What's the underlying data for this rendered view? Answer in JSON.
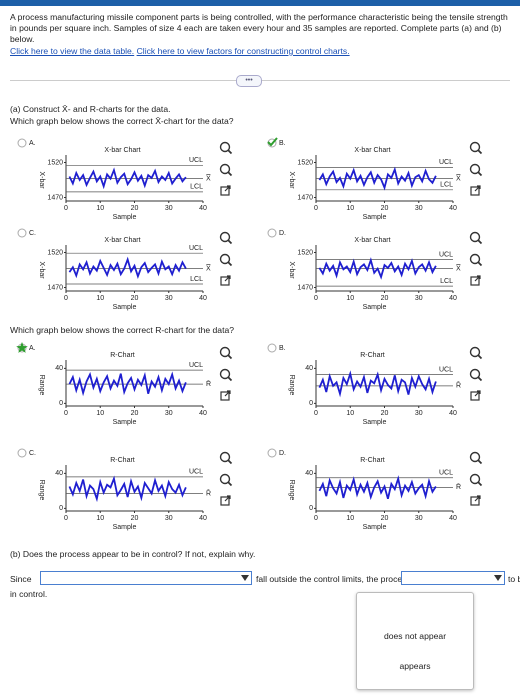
{
  "header": {
    "intro": "A process manufacturing missile component parts is being controlled, with the performance characteristic being the tensile strength in pounds per square inch. Samples of size 4 each are taken every hour and 35 samples are reported. Complete parts (a) and (b) below.",
    "links": [
      "Click here to view the data table.",
      "Click here to view factors for constructing control charts."
    ]
  },
  "part_a": {
    "heading": "(a) Construct X̄- and R-charts for the data.",
    "xbar_question": "Which graph below shows the correct X̄-chart for the data?",
    "xbar_options": [
      {
        "letter": "A.",
        "correct": false,
        "title": "X-bar Chart",
        "ylabel": "X-bar",
        "xlabel": "Sample",
        "xlim": [
          0,
          40
        ],
        "xticks": [
          0,
          10,
          20,
          30,
          40
        ],
        "ylim": [
          1465,
          1525
        ],
        "yticks": [
          1470,
          1520
        ],
        "ucl_label": "UCL",
        "center_label": "X̿",
        "lcl_label": "LCL",
        "ucl": 1516,
        "center": 1497,
        "lcl": 1478,
        "values": [
          1500,
          1490,
          1505,
          1495,
          1502,
          1488,
          1498,
          1507,
          1493,
          1500,
          1486,
          1503,
          1497,
          1509,
          1491,
          1499,
          1504,
          1489,
          1496,
          1506,
          1494,
          1501,
          1487,
          1502,
          1498,
          1508,
          1492,
          1500,
          1495,
          1505,
          1490,
          1497,
          1503,
          1493,
          1499
        ]
      },
      {
        "letter": "B.",
        "correct": true,
        "title": "X-bar Chart",
        "ylabel": "X-bar",
        "xlabel": "Sample",
        "xlim": [
          0,
          40
        ],
        "xticks": [
          0,
          10,
          20,
          30,
          40
        ],
        "ylim": [
          1465,
          1525
        ],
        "yticks": [
          1470,
          1520
        ],
        "ucl_label": "UCL",
        "center_label": "X̿",
        "lcl_label": "LCL",
        "ucl": 1513,
        "center": 1497,
        "lcl": 1481,
        "values": [
          1495,
          1503,
          1489,
          1500,
          1507,
          1492,
          1498,
          1486,
          1504,
          1497,
          1509,
          1493,
          1501,
          1488,
          1499,
          1506,
          1491,
          1502,
          1496,
          1484,
          1503,
          1498,
          1510,
          1490,
          1500,
          1494,
          1505,
          1487,
          1499,
          1502,
          1493,
          1508,
          1496,
          1491,
          1501
        ]
      },
      {
        "letter": "C.",
        "correct": false,
        "title": "X-bar Chart",
        "ylabel": "X-bar",
        "xlabel": "Sample",
        "xlim": [
          0,
          40
        ],
        "xticks": [
          0,
          10,
          20,
          30,
          40
        ],
        "ylim": [
          1465,
          1525
        ],
        "yticks": [
          1470,
          1520
        ],
        "ucl_label": "UCL",
        "center_label": "X̿",
        "lcl_label": "LCL",
        "ucl": 1519,
        "center": 1497,
        "lcl": 1475,
        "values": [
          1492,
          1499,
          1487,
          1503,
          1496,
          1506,
          1490,
          1500,
          1494,
          1508,
          1498,
          1488,
          1502,
          1495,
          1504,
          1489,
          1497,
          1510,
          1493,
          1501,
          1486,
          1499,
          1505,
          1492,
          1498,
          1503,
          1490,
          1507,
          1496,
          1500,
          1489,
          1502,
          1494,
          1506,
          1497
        ]
      },
      {
        "letter": "D.",
        "correct": false,
        "title": "X-bar Chart",
        "ylabel": "X-bar",
        "xlabel": "Sample",
        "xlim": [
          0,
          40
        ],
        "xticks": [
          0,
          10,
          20,
          30,
          40
        ],
        "ylim": [
          1465,
          1525
        ],
        "yticks": [
          1470,
          1520
        ],
        "ucl_label": "UCL",
        "center_label": "X̿",
        "lcl_label": "LCL",
        "ucl": 1510,
        "center": 1497,
        "lcl": 1472,
        "values": [
          1498,
          1490,
          1504,
          1494,
          1501,
          1487,
          1506,
          1496,
          1500,
          1492,
          1507,
          1489,
          1499,
          1503,
          1495,
          1509,
          1491,
          1497,
          1485,
          1502,
          1498,
          1505,
          1493,
          1500,
          1488,
          1504,
          1496,
          1508,
          1490,
          1499,
          1503,
          1494,
          1506,
          1492,
          1501
        ]
      }
    ],
    "r_question": "Which graph below shows the correct R-chart for the data?",
    "r_options": [
      {
        "letter": "A.",
        "correct": true,
        "title": "R-Chart",
        "ylabel": "Range",
        "xlabel": "Sample",
        "xlim": [
          0,
          40
        ],
        "xticks": [
          0,
          10,
          20,
          30,
          40
        ],
        "ylim": [
          -3,
          45
        ],
        "yticks": [
          0,
          40
        ],
        "ucl_label": "UCL",
        "center_label": "R̄",
        "ucl": 38,
        "center": 22,
        "values": [
          22,
          30,
          15,
          27,
          12,
          25,
          33,
          18,
          28,
          14,
          24,
          31,
          17,
          26,
          20,
          34,
          13,
          23,
          29,
          16,
          27,
          21,
          32,
          11,
          25,
          19,
          30,
          15,
          28,
          22,
          33,
          17,
          26,
          14,
          24
        ]
      },
      {
        "letter": "B.",
        "correct": false,
        "title": "R-Chart",
        "ylabel": "Range",
        "xlabel": "Sample",
        "xlim": [
          0,
          40
        ],
        "xticks": [
          0,
          10,
          20,
          30,
          40
        ],
        "ylim": [
          -3,
          45
        ],
        "yticks": [
          0,
          40
        ],
        "ucl_label": "UCL",
        "center_label": "R̄",
        "ucl": 33,
        "center": 20,
        "values": [
          18,
          27,
          13,
          31,
          20,
          24,
          11,
          29,
          22,
          34,
          16,
          25,
          19,
          30,
          12,
          26,
          23,
          33,
          15,
          28,
          21,
          17,
          32,
          14,
          27,
          24,
          10,
          29,
          19,
          31,
          22,
          16,
          28,
          13,
          25
        ]
      },
      {
        "letter": "C.",
        "correct": false,
        "title": "R-Chart",
        "ylabel": "Range",
        "xlabel": "Sample",
        "xlim": [
          0,
          40
        ],
        "xticks": [
          0,
          10,
          20,
          30,
          40
        ],
        "ylim": [
          -3,
          45
        ],
        "yticks": [
          0,
          40
        ],
        "ucl_label": "UCL",
        "center_label": "R̄",
        "ucl": 36,
        "center": 17,
        "values": [
          25,
          16,
          29,
          20,
          33,
          14,
          26,
          22,
          11,
          30,
          18,
          27,
          24,
          34,
          15,
          21,
          28,
          13,
          31,
          19,
          25,
          12,
          29,
          23,
          17,
          32,
          20,
          26,
          14,
          30,
          22,
          18,
          27,
          15,
          24
        ]
      },
      {
        "letter": "D.",
        "correct": false,
        "title": "R-Chart",
        "ylabel": "Range",
        "xlabel": "Sample",
        "xlim": [
          0,
          40
        ],
        "xticks": [
          0,
          10,
          20,
          30,
          40
        ],
        "ylim": [
          -3,
          45
        ],
        "yticks": [
          0,
          40
        ],
        "ucl_label": "UCL",
        "center_label": "R̄",
        "ucl": 35,
        "center": 24,
        "values": [
          20,
          28,
          14,
          32,
          23,
          17,
          30,
          12,
          26,
          21,
          33,
          16,
          27,
          19,
          29,
          13,
          24,
          31,
          18,
          25,
          11,
          28,
          22,
          34,
          15,
          26,
          20,
          30,
          17,
          23,
          27,
          14,
          31,
          19,
          25
        ]
      }
    ]
  },
  "part_b": {
    "question": "(b) Does the process appear to be in control? If not, explain why.",
    "before_dropdown1": "Since",
    "between_dropdowns": "fall outside the control limits, the process",
    "after_dropdown2": "to be",
    "continuation": "in control.",
    "dropdown2_options": [
      "does not appear",
      "appears"
    ]
  }
}
